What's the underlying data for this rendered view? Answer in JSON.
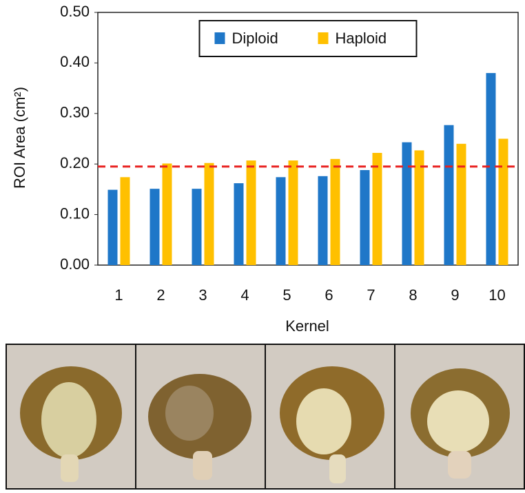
{
  "chart_data": {
    "type": "bar",
    "y_label": "ROI Area (cm²)",
    "x_label": "Kernel",
    "categories": [
      "1",
      "2",
      "3",
      "4",
      "5",
      "6",
      "7",
      "8",
      "9",
      "10"
    ],
    "series": [
      {
        "name": "Diploid",
        "color": "#1f77c8",
        "values": [
          0.149,
          0.151,
          0.151,
          0.162,
          0.174,
          0.176,
          0.188,
          0.243,
          0.277,
          0.38
        ]
      },
      {
        "name": "Haploid",
        "color": "#ffc000",
        "values": [
          0.174,
          0.201,
          0.202,
          0.207,
          0.207,
          0.21,
          0.222,
          0.227,
          0.24,
          0.25
        ]
      }
    ],
    "threshold": {
      "value": 0.195,
      "color": "#e8201f"
    },
    "ylim": [
      0,
      0.5
    ],
    "yticks": [
      {
        "value": 0,
        "label": "0.00"
      },
      {
        "value": 0.1,
        "label": "0.10"
      },
      {
        "value": 0.2,
        "label": "0.20"
      },
      {
        "value": 0.3,
        "label": "0.30"
      },
      {
        "value": 0.4,
        "label": "0.40"
      },
      {
        "value": 0.5,
        "label": "0.50"
      }
    ],
    "grid": false,
    "legend": "top center"
  }
}
